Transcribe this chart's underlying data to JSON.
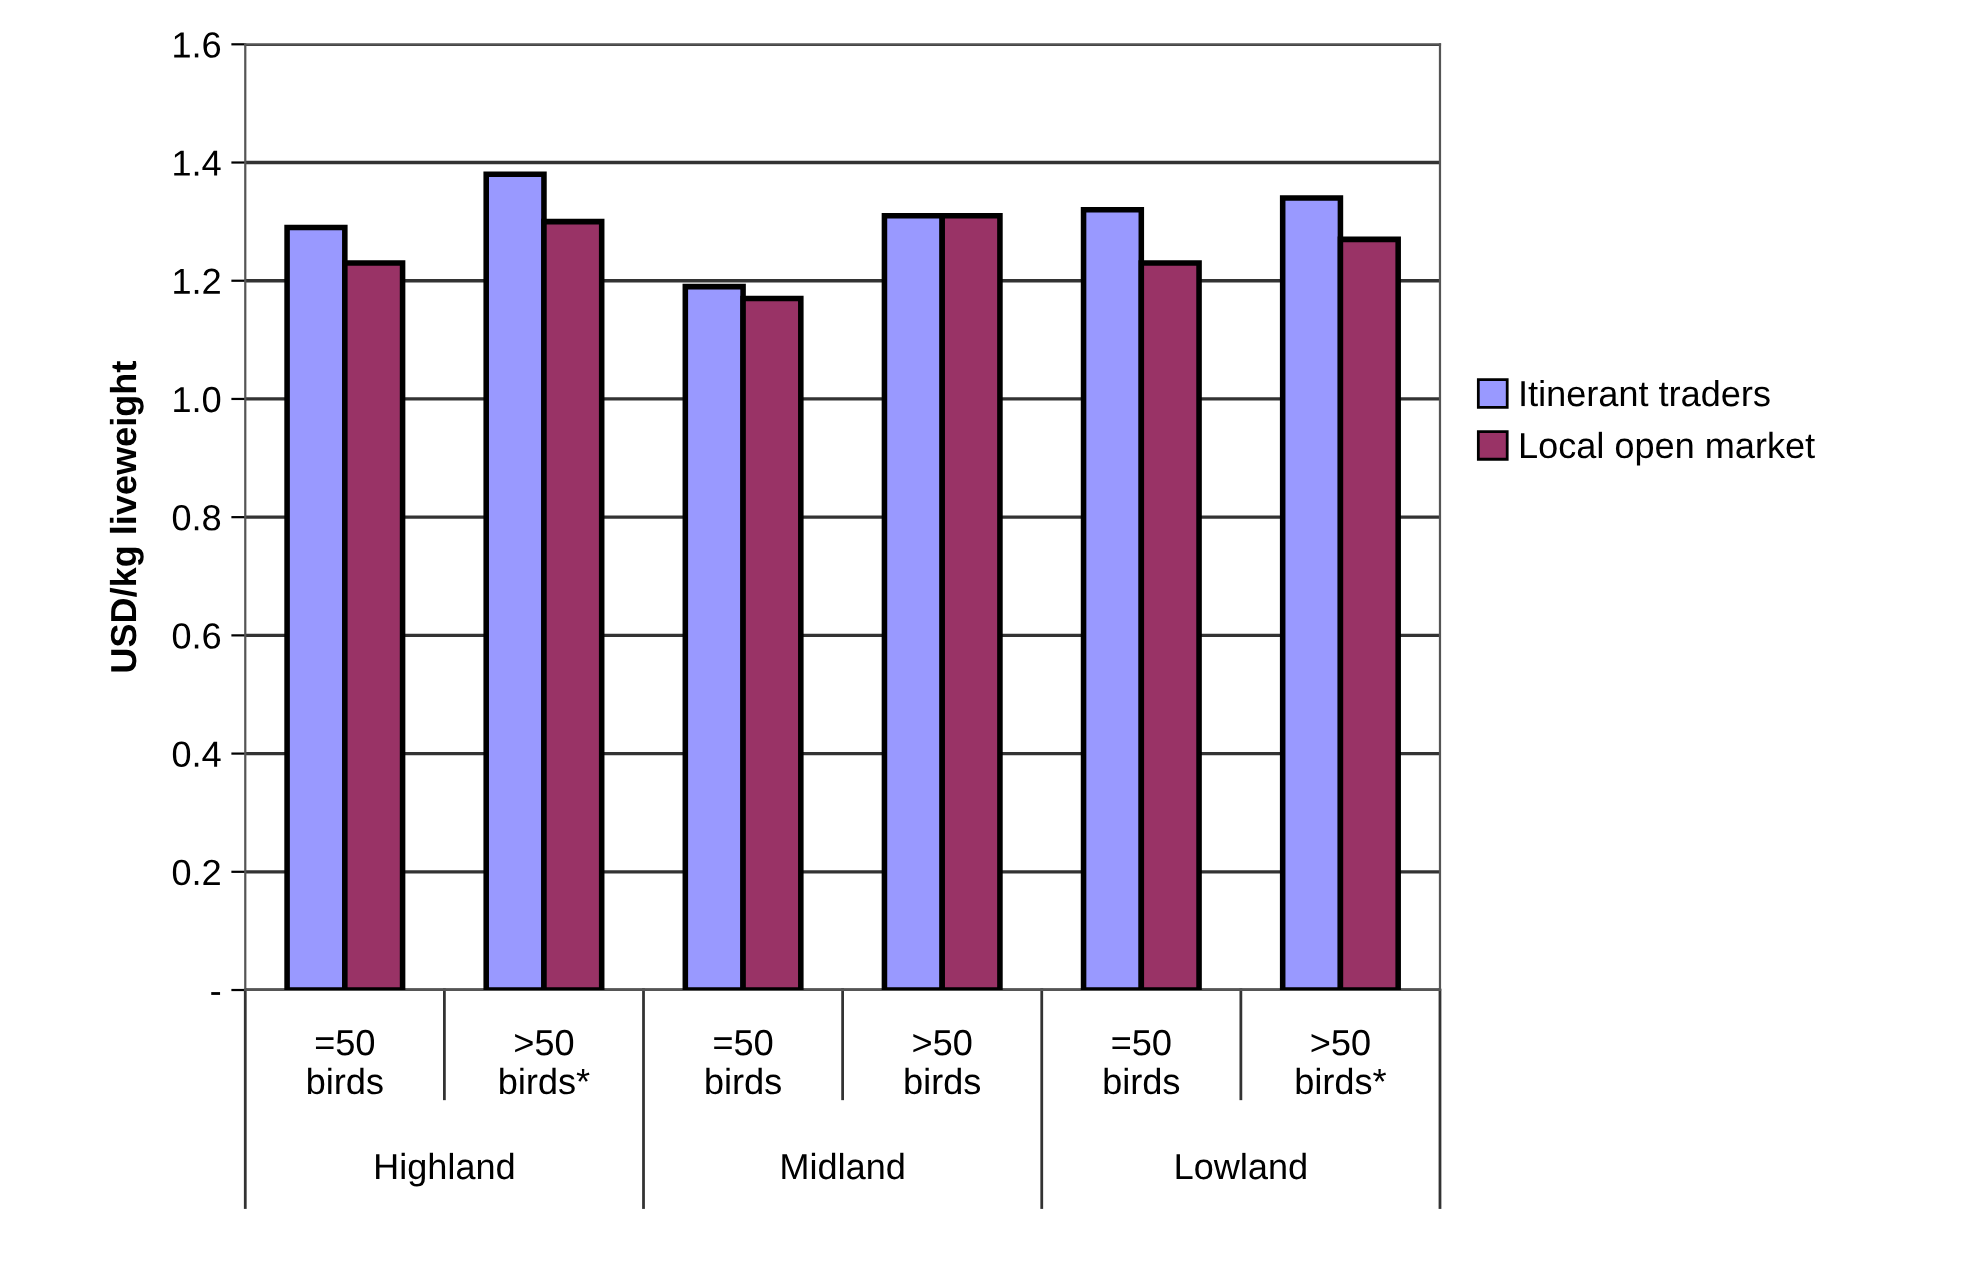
{
  "chart_data": {
    "type": "bar",
    "ylabel": "USD/kg liveweight",
    "categories": [
      "=50\nbirds",
      ">50\nbirds*",
      "=50\nbirds",
      ">50\nbirds",
      "=50\nbirds",
      ">50\nbirds*"
    ],
    "annotations": [
      "Highland",
      "Midland",
      "Lowland"
    ],
    "series": [
      {
        "name": "Itinerant traders",
        "color": "#9999ff",
        "values": [
          1.29,
          1.38,
          1.19,
          1.31,
          1.32,
          1.34
        ]
      },
      {
        "name": "Local open market",
        "color": "#993366",
        "values": [
          1.23,
          1.3,
          1.17,
          1.31,
          1.23,
          1.27
        ]
      }
    ],
    "ylim": [
      0,
      1.6
    ],
    "yticks": [
      {
        "value": 0,
        "label": "-"
      },
      {
        "value": 0.2,
        "label": "0.2"
      },
      {
        "value": 0.4,
        "label": "0.4"
      },
      {
        "value": 0.6,
        "label": "0.6"
      },
      {
        "value": 0.8,
        "label": "0.8"
      },
      {
        "value": 1,
        "label": "1.0"
      },
      {
        "value": 1.2,
        "label": "1.2"
      },
      {
        "value": 1.4,
        "label": "1.4"
      },
      {
        "value": 1.6,
        "label": "1.6"
      }
    ],
    "grid": "y",
    "legend": "right"
  }
}
